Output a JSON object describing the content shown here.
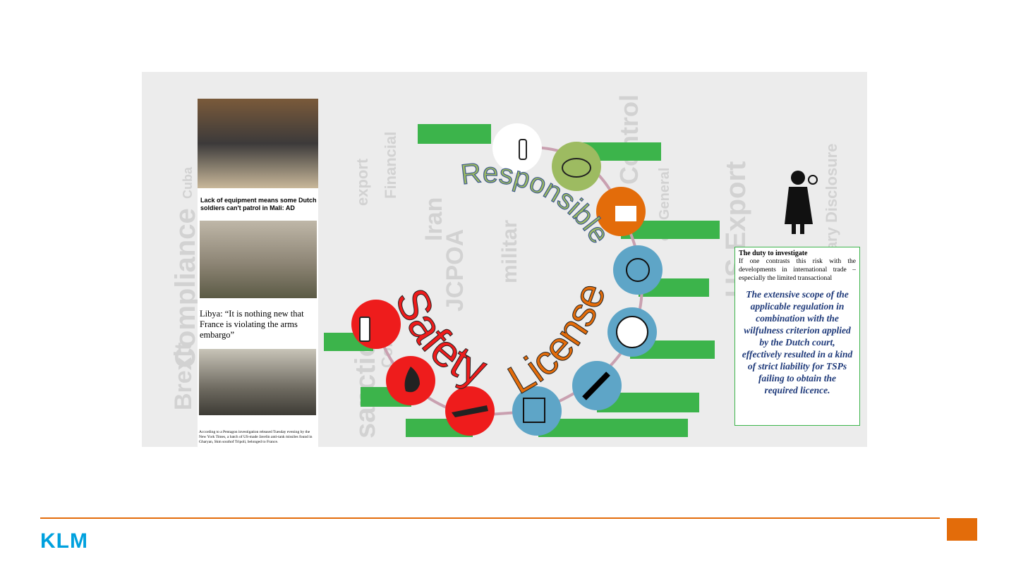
{
  "slide": {
    "news": {
      "headline_1": "Lack of equipment means some Dutch soldiers can't patrol in Mali: AD",
      "headline_2": "Libya: “It is nothing new that France is violating the arms embargo”",
      "caption": "According to a Pentagon investigation released Tuesday evening by the New York Times, a batch of US-made Javelin anti-tank missiles found in Gharyan, Skm southof Tripoli, belonged to France."
    },
    "arc_words": {
      "top": "Responsible",
      "left": "Safety",
      "right": "License"
    },
    "background_words": [
      "Compliance",
      "Brexit",
      "Cuba",
      "export",
      "Iran",
      "JCPOA",
      "sanctions",
      "Controls",
      "Financial",
      "militar",
      "US Export",
      "Voluntary Disclosure",
      "Control",
      "on General"
    ],
    "quote_box": {
      "heading": "The duty to investigate",
      "body": "If one contrasts this risk with the developments in international trade – especially the limited transactional",
      "quote": "The extensive scope of the applicable regulation in combination with the wilfulness criterion applied by the Dutch court, effectively resulted in a kind of strict liability for TSPs failing to obtain the required licence."
    },
    "footer": {
      "logo": "KLM"
    }
  }
}
